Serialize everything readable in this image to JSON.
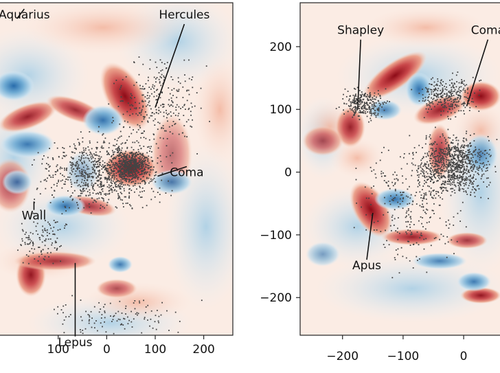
{
  "chart_data": [
    {
      "type": "heatmap",
      "panel": "left",
      "xlim": [
        -220,
        260
      ],
      "ylim": [
        -220,
        240
      ],
      "xticks": [
        -100,
        0,
        100,
        200
      ],
      "xtick_labels": [
        "100",
        "0",
        "100",
        "200"
      ],
      "yticks": [],
      "colormap": "diverging red-white-blue",
      "overlay": "scatter of galaxy positions (dark grey dots)",
      "annotations": [
        {
          "label": "Aquarius",
          "x": -185,
          "y": 218,
          "tx": -170,
          "ty": 218
        },
        {
          "label": "Hercules",
          "x": 100,
          "y": 95,
          "tx": 160,
          "ty": 218
        },
        {
          "label": "Coma",
          "x": 105,
          "y": 0,
          "tx": 165,
          "ty": 0
        },
        {
          "label": "Wall",
          "x": -150,
          "y": -35,
          "tx": -150,
          "ty": -60
        },
        {
          "label": "Lepus",
          "x": -65,
          "y": -120,
          "tx": -65,
          "ty": -235
        }
      ]
    },
    {
      "type": "heatmap",
      "panel": "right",
      "xlim": [
        -270,
        60
      ],
      "ylim": [
        -260,
        270
      ],
      "xticks": [
        -200,
        -100,
        0
      ],
      "xtick_labels": [
        "−200",
        "−100",
        "0"
      ],
      "yticks": [
        200,
        100,
        0,
        -100,
        -200
      ],
      "ytick_labels": [
        "200",
        "100",
        "0",
        "−100",
        "−200"
      ],
      "colormap": "diverging red-white-blue",
      "overlay": "scatter of galaxy positions (dark grey dots)",
      "annotations": [
        {
          "label": "Shapley",
          "x": -175,
          "y": 100,
          "tx": -170,
          "ty": 220
        },
        {
          "label": "Coma",
          "x": 5,
          "y": 105,
          "tx": 40,
          "ty": 220
        },
        {
          "label": "Apus",
          "x": -150,
          "y": -65,
          "tx": -160,
          "ty": -155
        }
      ]
    }
  ]
}
